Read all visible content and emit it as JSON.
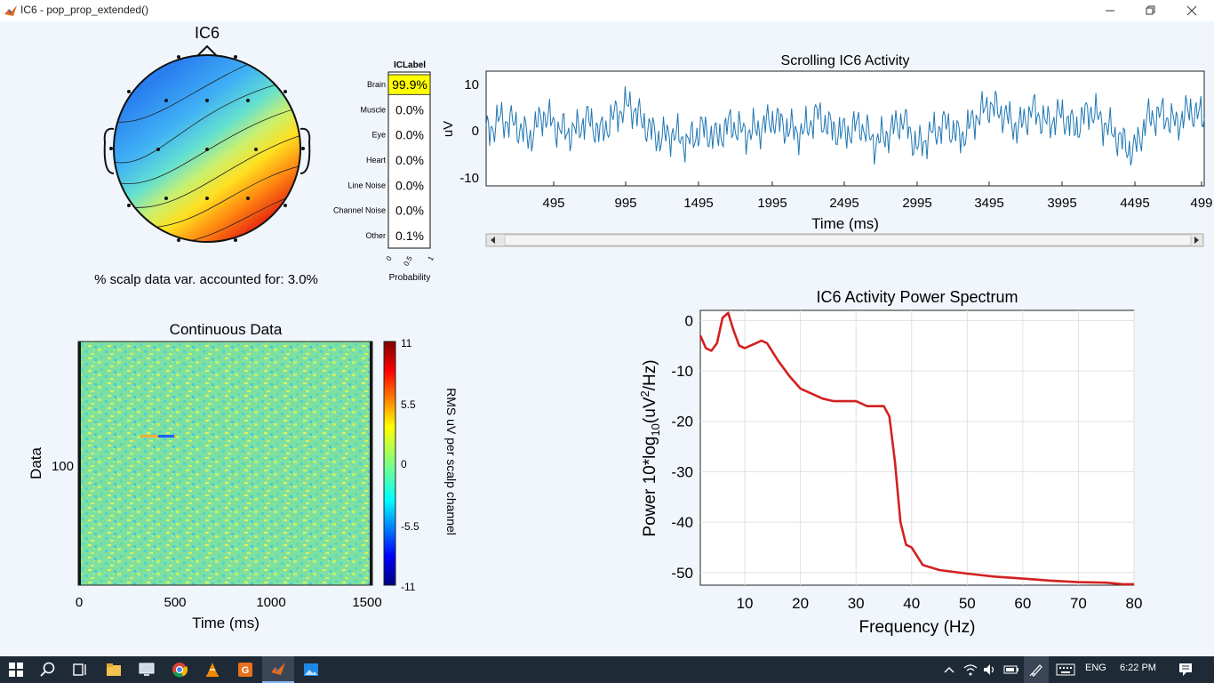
{
  "window": {
    "title": "IC6 - pop_prop_extended()",
    "minimize_icon": "minimize-icon",
    "maximize_icon": "restore-icon",
    "close_icon": "close-icon"
  },
  "topo": {
    "title": "IC6",
    "variance_text": "% scalp data var. accounted for: 3.0%"
  },
  "iclabel": {
    "title": "ICLabel",
    "xlabel": "Probability",
    "ticks": [
      "0",
      "0.5",
      "1"
    ],
    "rows": [
      {
        "label": "Brain",
        "value": "99.9%",
        "highlight": true
      },
      {
        "label": "Muscle",
        "value": "0.0%"
      },
      {
        "label": "Eye",
        "value": "0.0%"
      },
      {
        "label": "Heart",
        "value": "0.0%"
      },
      {
        "label": "Line Noise",
        "value": "0.0%"
      },
      {
        "label": "Channel Noise",
        "value": "0.0%"
      },
      {
        "label": "Other",
        "value": "0.1%"
      }
    ],
    "highlight_color": "#ffff00"
  },
  "scroll_plot": {
    "title": "Scrolling IC6 Activity",
    "xlabel": "Time (ms)",
    "ylabel": "uV",
    "yticks": [
      "10",
      "0",
      "-10"
    ],
    "xticks": [
      "495",
      "995",
      "1495",
      "1995",
      "2495",
      "2995",
      "3495",
      "3995",
      "4495",
      "499"
    ],
    "ylim": [
      -12,
      12
    ],
    "line_color": "#1f77b4"
  },
  "erpimage": {
    "title": "Continuous Data",
    "xlabel": "Time (ms)",
    "ylabel": "Data",
    "ytick": "100",
    "xticks": [
      "0",
      "500",
      "1000",
      "1500"
    ],
    "colorbar_ticks": [
      "11",
      "5.5",
      "0",
      "-5.5",
      "-11"
    ],
    "colorbar_label": "RMS uV per scalp channel"
  },
  "spectrum": {
    "title": "IC6 Activity Power Spectrum",
    "xlabel": "Frequency (Hz)",
    "ylabel_main": "Power 10*log",
    "ylabel_sub": "10",
    "ylabel_unit_pre": "(uV",
    "ylabel_sup": "2",
    "ylabel_unit_post": "/Hz)",
    "xticks": [
      "10",
      "20",
      "30",
      "40",
      "50",
      "60",
      "70",
      "80"
    ],
    "yticks": [
      "0",
      "-10",
      "-20",
      "-30",
      "-40",
      "-50"
    ],
    "line_color": "#d42020"
  },
  "chart_data": [
    {
      "type": "line",
      "title": "Scrolling IC6 Activity",
      "xlabel": "Time (ms)",
      "ylabel": "uV",
      "ylim": [
        -12,
        12
      ],
      "xlim": [
        0,
        4995
      ],
      "x": [
        0,
        100,
        200,
        300,
        400,
        500,
        600,
        700,
        800,
        900,
        1000,
        1100,
        1200,
        1300,
        1400,
        1500,
        1600,
        1700,
        1800,
        1900,
        2000,
        2100,
        2200,
        2300,
        2400,
        2500,
        2600,
        2700,
        2800,
        2900,
        3000,
        3100,
        3200,
        3300,
        3400,
        3500,
        3600,
        3700,
        3800,
        3900,
        4000,
        4100,
        4200,
        4300,
        4400,
        4500,
        4600,
        4700,
        4800,
        4900,
        4995
      ],
      "series": [
        {
          "values": [
            -1,
            2,
            1,
            -2,
            3,
            0,
            -1,
            2,
            -1,
            3,
            5,
            1,
            -2,
            -1,
            -3,
            0,
            -2,
            1,
            -1,
            0,
            2,
            0,
            -1,
            3,
            0,
            -1,
            1,
            -3,
            -1,
            2,
            -4,
            -1,
            1,
            -2,
            2,
            5,
            3,
            0,
            4,
            1,
            3,
            0,
            4,
            1,
            -2,
            -5,
            2,
            3,
            1,
            4,
            2
          ]
        }
      ]
    },
    {
      "type": "heatmap",
      "title": "Continuous Data",
      "xlabel": "Time (ms)",
      "ylabel": "Data",
      "xlim": [
        0,
        1520
      ],
      "colorbar_range": [
        -11,
        11
      ],
      "colorbar_label": "RMS uV per scalp channel"
    },
    {
      "type": "line",
      "title": "IC6 Activity Power Spectrum",
      "xlabel": "Frequency (Hz)",
      "ylabel": "Power 10*log10(uV^2/Hz)",
      "xlim": [
        2,
        80
      ],
      "ylim": [
        -52.5,
        2
      ],
      "grid": true,
      "x": [
        2,
        3,
        4,
        5,
        6,
        7,
        8,
        9,
        10,
        11,
        12,
        13,
        14,
        16,
        18,
        20,
        22,
        24,
        26,
        28,
        30,
        32,
        34,
        35,
        36,
        37,
        38,
        39,
        40,
        42,
        45,
        50,
        55,
        60,
        65,
        70,
        75,
        78,
        80
      ],
      "series": [
        {
          "values": [
            -3,
            -5.5,
            -6,
            -4.5,
            0.5,
            1.5,
            -2,
            -5,
            -5.5,
            -5,
            -4.5,
            -4,
            -4.5,
            -8,
            -11,
            -13.5,
            -14.5,
            -15.5,
            -16,
            -16,
            -16,
            -17,
            -17,
            -17,
            -19,
            -28,
            -40,
            -44.5,
            -45,
            -48.5,
            -49.5,
            -50.2,
            -50.8,
            -51.2,
            -51.6,
            -51.9,
            -52,
            -52.3,
            -52.3
          ]
        }
      ]
    }
  ],
  "taskbar": {
    "icons": [
      "windows-start-icon",
      "search-icon",
      "task-view-icon",
      "file-explorer-icon",
      "remote-desktop-icon",
      "chrome-icon",
      "vlc-icon",
      "document-app-icon",
      "matlab-icon",
      "photos-icon"
    ],
    "tray_icons": [
      "chevron-up-icon",
      "wifi-icon",
      "volume-icon",
      "battery-icon",
      "pen-icon",
      "keyboard-icon",
      "notification-icon"
    ],
    "language": "ENG",
    "clock": "6:22 PM"
  }
}
